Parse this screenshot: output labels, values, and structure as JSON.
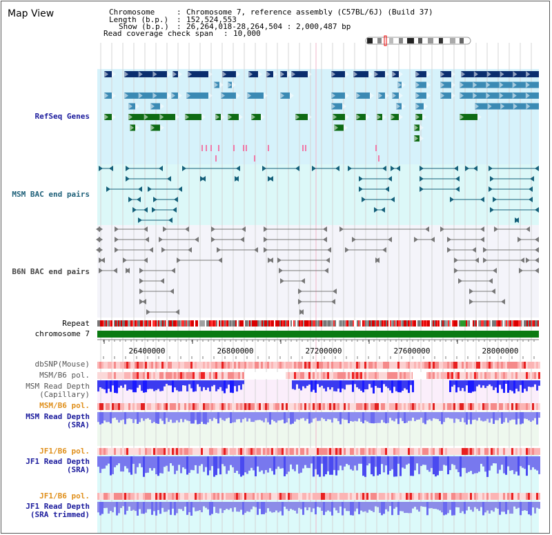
{
  "page": {
    "title": "Map View"
  },
  "info": {
    "chromosome_key": "Chromosome",
    "chromosome_value": "Chromosome 7, reference assembly (C57BL/6J) (Build 37)",
    "length_key": "Length (b.p.)",
    "length_value": "152,524,553",
    "show_key": "Show (b.p.)",
    "show_value": "26,264,018-28,264,504 : 2,000,487 bp",
    "coverage_key": "Read coverage check span",
    "coverage_value": "10,000"
  },
  "tracks": {
    "refseq": "RefSeq Genes",
    "msm_bac": "MSM BAC end pairs",
    "b6n_bac": "B6N BAC end pairs",
    "repeat": "Repeat",
    "chromosome": "chromosome 7",
    "dbsnp": "dbSNP(Mouse)",
    "msm_b6_pol_1": "MSM/B6 pol.",
    "msm_read_depth_cap_1": "MSM Read Depth",
    "msm_read_depth_cap_2": "(Capillary)",
    "msm_b6_pol_2": "MSM/B6 pol.",
    "msm_read_depth_sra_1": "MSM Read Depth",
    "msm_read_depth_sra_2": "(SRA)",
    "jf1_b6_pol_1": "JF1/B6 pol.",
    "jf1_read_depth_sra_1": "JF1 Read Depth",
    "jf1_read_depth_sra_2": "(SRA)",
    "jf1_b6_pol_2": "JF1/B6 pol.",
    "jf1_read_depth_trim_1": "JF1 Read Depth",
    "jf1_read_depth_trim_2": "(SRA trimmed)"
  },
  "axis": {
    "ticks": [
      "26400000",
      "26800000",
      "27200000",
      "27600000",
      "28000000"
    ]
  },
  "colors": {
    "refseq_bg": "#d6f2fb",
    "msm_bac_bg": "#dcf8f8",
    "b6n_bac_bg": "#f4f4fa",
    "capillary_bg": "#fbeefb",
    "msm_sra_bg": "#eef8ee",
    "jf1_bg": "#dcfafa",
    "navy": "#0b2e6e",
    "steel": "#3b8ab4",
    "green": "#0e6b14",
    "teal": "#15607a",
    "pink": "#f07aa8",
    "chromosome_bar": "#0a7a12",
    "depth_blue": "#2c2cff",
    "depth_light": "#7a7ae8"
  }
}
